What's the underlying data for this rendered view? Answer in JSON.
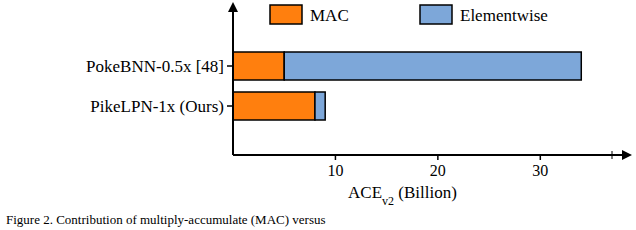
{
  "chart_data": {
    "type": "bar",
    "orientation": "horizontal",
    "stacked": true,
    "categories": [
      "PokeBNN-0.5x [48]",
      "PikeLPN-1x (Ours)"
    ],
    "series": [
      {
        "name": "MAC",
        "color": "#ff7f0e",
        "values": [
          5,
          8
        ]
      },
      {
        "name": "Elementwise",
        "color": "#7da7d9",
        "values": [
          29,
          1
        ]
      }
    ],
    "x_label": "ACEv2 (Billion)",
    "xlim": [
      0,
      37
    ],
    "xticks": [
      10,
      20,
      30
    ],
    "grid": false,
    "legend": "top",
    "annotations": [
      "Figure 2.  Contribution of multiply-accumulate (MAC) versus"
    ]
  }
}
